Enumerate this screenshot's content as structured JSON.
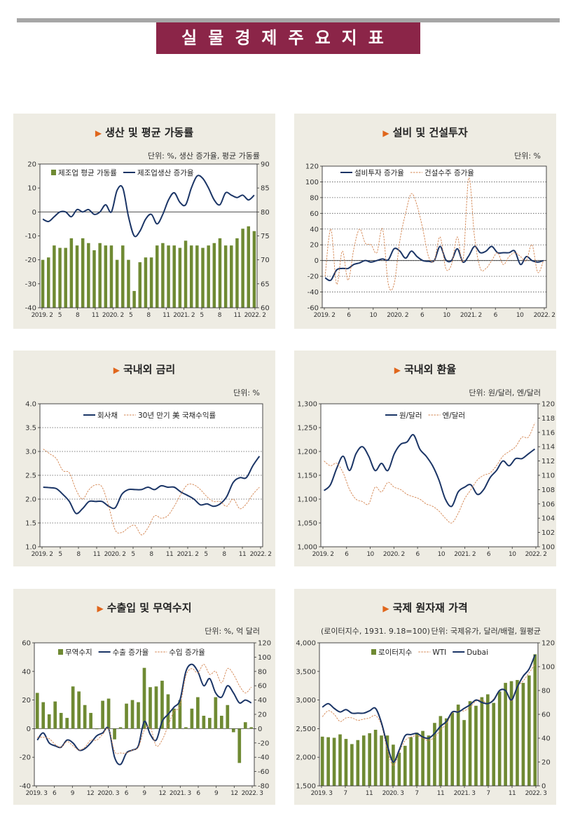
{
  "page_title": "실물경제주요지표",
  "colors": {
    "bar": "#6f8a33",
    "navy": "#1b3566",
    "orange": "#d3834e",
    "banner": "#8b2548"
  },
  "panels": [
    {
      "title": "생산 및 평균 가동률",
      "unit": "단위: %, 생산 증가율, 평균 가동률"
    },
    {
      "title": "설비 및 건설투자",
      "unit": "단위: %"
    },
    {
      "title": "국내외 금리",
      "unit": "단위: %"
    },
    {
      "title": "국내외 환율",
      "unit": "단위: 원/달러, 엔/달러"
    },
    {
      "title": "수출입 및 무역수지",
      "unit": "단위: %, 억 달러"
    },
    {
      "title": "국제 원자재 가격",
      "unit": "단위: 국제유가, 달러/배럴, 월평균",
      "unit_left": "(로이터지수, 1931. 9.18=100)"
    }
  ],
  "chart_data": [
    {
      "type": "bar",
      "title": "생산 및 평균 가동률",
      "x_ticks": [
        "2019. 2",
        "5",
        "8",
        "11",
        "2020. 2",
        "5",
        "8",
        "11",
        "2021. 2",
        "5",
        "8",
        "11",
        "2022. 2"
      ],
      "left_axis": {
        "ylim": [
          -40,
          20
        ],
        "ticks": [
          20,
          10,
          0,
          -10,
          -20,
          -30,
          -40
        ]
      },
      "right_axis": {
        "ylim": [
          60,
          90
        ],
        "ticks": [
          90,
          85,
          80,
          75,
          70,
          65,
          60
        ]
      },
      "series": [
        {
          "name": "제조업 평균 가동률",
          "kind": "bar",
          "axis": "right",
          "values": [
            70.0,
            70.5,
            73.0,
            72.5,
            72.5,
            74.5,
            73.0,
            74.5,
            73.5,
            72.0,
            73.5,
            73.0,
            73.0,
            70.0,
            73.0,
            70.0,
            63.5,
            69.5,
            70.5,
            70.5,
            73.0,
            73.5,
            73.0,
            73.0,
            72.5,
            74.0,
            73.0,
            73.0,
            72.5,
            73.0,
            73.5,
            74.5,
            73.0,
            73.0,
            74.5,
            76.5,
            77.0,
            76.0
          ]
        },
        {
          "name": "제조업생산 증가율",
          "kind": "line",
          "axis": "left",
          "values": [
            -3,
            -4,
            -2,
            0,
            0,
            -2,
            1,
            0,
            1,
            -1,
            0,
            3,
            0,
            9,
            10,
            -2,
            -10,
            -8,
            -3,
            -1,
            -5,
            -1,
            5,
            8,
            4,
            3,
            10,
            15,
            14,
            10,
            5,
            3,
            8,
            7,
            6,
            7,
            5,
            7
          ]
        }
      ]
    },
    {
      "type": "line",
      "title": "설비 및 건설투자",
      "x_ticks": [
        "2019. 2",
        "6",
        "10",
        "2020. 2",
        "6",
        "10",
        "2021. 2",
        "6",
        "10",
        "2022. 2"
      ],
      "ylim": [
        -60,
        120
      ],
      "y_ticks": [
        120,
        100,
        80,
        60,
        40,
        20,
        0,
        -20,
        -40,
        -60
      ],
      "series": [
        {
          "name": "설비투자 증가율",
          "values": [
            -22,
            -25,
            -12,
            -10,
            -10,
            -5,
            -3,
            0,
            -2,
            0,
            2,
            1,
            15,
            12,
            3,
            12,
            5,
            0,
            -1,
            0,
            18,
            1,
            0,
            15,
            -2,
            6,
            18,
            10,
            12,
            18,
            10,
            10,
            10,
            12,
            -5,
            5,
            0,
            -2,
            0
          ]
        },
        {
          "name": "건설수주 증가율",
          "values": [
            -20,
            40,
            -30,
            12,
            -25,
            15,
            40,
            22,
            20,
            10,
            40,
            -30,
            -30,
            25,
            60,
            85,
            70,
            40,
            5,
            0,
            30,
            -10,
            -5,
            30,
            0,
            105,
            30,
            -10,
            -10,
            0,
            10,
            -5,
            5,
            10,
            5,
            0,
            20,
            -15,
            0
          ]
        }
      ]
    },
    {
      "type": "line",
      "title": "국내외 금리",
      "x_ticks": [
        "2019. 2",
        "5",
        "8",
        "11",
        "2020. 2",
        "5",
        "8",
        "11",
        "2021. 2",
        "5",
        "8",
        "11",
        "2022. 2"
      ],
      "ylim": [
        1.0,
        4.0
      ],
      "y_ticks": [
        "4.0",
        "3.5",
        "3.0",
        "2.5",
        "2.0",
        "1.5",
        "1.0"
      ],
      "series": [
        {
          "name": "회사채",
          "values": [
            2.25,
            2.24,
            2.22,
            2.1,
            1.95,
            1.7,
            1.8,
            1.95,
            1.95,
            1.95,
            1.85,
            1.82,
            2.1,
            2.2,
            2.2,
            2.2,
            2.25,
            2.2,
            2.28,
            2.25,
            2.25,
            2.15,
            2.08,
            2.0,
            1.88,
            1.9,
            1.85,
            1.9,
            2.05,
            2.35,
            2.45,
            2.45,
            2.7,
            2.9
          ]
        },
        {
          "name": "30년 만기 美 국채수익률",
          "values": [
            3.05,
            2.95,
            2.85,
            2.6,
            2.55,
            2.2,
            2.0,
            2.2,
            2.3,
            2.25,
            1.85,
            1.35,
            1.3,
            1.4,
            1.45,
            1.25,
            1.4,
            1.65,
            1.6,
            1.65,
            1.85,
            2.1,
            2.3,
            2.3,
            2.2,
            2.05,
            1.95,
            1.95,
            1.85,
            2.0,
            1.8,
            1.9,
            2.1,
            2.25
          ]
        }
      ]
    },
    {
      "type": "line",
      "title": "국내외 환율",
      "x_ticks": [
        "2019. 2",
        "6",
        "10",
        "2020. 2",
        "6",
        "10",
        "2021. 2",
        "6",
        "10",
        "2022. 2"
      ],
      "left_axis": {
        "ylim": [
          1000,
          1300
        ],
        "ticks": [
          "1,300",
          "1,250",
          "1,200",
          "1,150",
          "1,100",
          "1,050",
          "1,000"
        ]
      },
      "right_axis": {
        "ylim": [
          100,
          120
        ],
        "ticks": [
          120,
          118,
          116,
          114,
          112,
          110,
          108,
          106,
          104,
          102,
          100
        ]
      },
      "series": [
        {
          "name": "원/달러",
          "axis": "left",
          "values": [
            1118,
            1130,
            1165,
            1190,
            1160,
            1195,
            1210,
            1190,
            1160,
            1175,
            1160,
            1195,
            1215,
            1220,
            1235,
            1205,
            1190,
            1170,
            1140,
            1100,
            1085,
            1115,
            1125,
            1130,
            1110,
            1120,
            1145,
            1160,
            1180,
            1170,
            1185,
            1185,
            1195,
            1205
          ]
        },
        {
          "name": "엔/달러",
          "axis": "left",
          "values": [
            1180,
            1170,
            1175,
            1155,
            1120,
            1100,
            1095,
            1090,
            1125,
            1115,
            1135,
            1125,
            1120,
            1110,
            1105,
            1100,
            1090,
            1085,
            1075,
            1060,
            1050,
            1070,
            1100,
            1120,
            1140,
            1150,
            1155,
            1170,
            1190,
            1200,
            1210,
            1230,
            1230,
            1260
          ]
        }
      ]
    },
    {
      "type": "bar",
      "title": "수출입 및 무역수지",
      "x_ticks": [
        "2019. 3",
        "6",
        "9",
        "12",
        "2020. 3",
        "6",
        "9",
        "12",
        "2021. 3",
        "6",
        "9",
        "12",
        "2022. 3"
      ],
      "left_axis": {
        "ylim": [
          -40,
          60
        ],
        "ticks": [
          60,
          40,
          20,
          0,
          -20,
          -40
        ]
      },
      "right_axis": {
        "ylim": [
          -80,
          120
        ],
        "ticks": [
          120,
          100,
          80,
          60,
          40,
          20,
          0,
          -20,
          -40,
          -60,
          -80
        ]
      },
      "series": [
        {
          "name": "무역수지",
          "kind": "bar",
          "axis": "right",
          "values": [
            50,
            37,
            20,
            38,
            22,
            15,
            59,
            52,
            33,
            22,
            0,
            39,
            42,
            -15,
            2,
            35,
            40,
            37,
            85,
            58,
            59,
            67,
            48,
            28,
            40,
            2,
            28,
            44,
            18,
            15,
            44,
            18,
            33,
            -5,
            -48,
            9,
            2
          ]
        },
        {
          "name": "수출 증가율",
          "kind": "line",
          "axis": "left",
          "values": [
            -8,
            -3,
            -10,
            -12,
            -13,
            -8,
            -10,
            -15,
            -14,
            -10,
            -5,
            -3,
            0,
            -20,
            -25,
            -17,
            -15,
            -12,
            5,
            -4,
            -8,
            5,
            10,
            15,
            20,
            40,
            45,
            40,
            30,
            35,
            25,
            22,
            30,
            25,
            18,
            20,
            18
          ]
        },
        {
          "name": "수입 증가율",
          "kind": "line",
          "axis": "left",
          "values": [
            -6,
            -6,
            -7,
            -11,
            -13,
            -9,
            -12,
            -15,
            -13,
            -8,
            -8,
            -4,
            0,
            -16,
            -17,
            -17,
            -15,
            -13,
            -1,
            1,
            -12,
            -8,
            2,
            12,
            16,
            37,
            42,
            39,
            45,
            38,
            40,
            32,
            42,
            38,
            30,
            25,
            29
          ]
        }
      ]
    },
    {
      "type": "bar",
      "title": "국제 원자재 가격",
      "x_ticks": [
        "2019. 3",
        "7",
        "11",
        "2020. 3",
        "7",
        "11",
        "2021. 3",
        "7",
        "11",
        "2022. 3"
      ],
      "left_axis": {
        "ylim": [
          1500,
          4000
        ],
        "ticks": [
          "4,000",
          "3,500",
          "3,000",
          "2,500",
          "2,000",
          "1,500"
        ]
      },
      "right_axis": {
        "ylim": [
          0,
          120
        ],
        "ticks": [
          120,
          100,
          80,
          60,
          40,
          20,
          0
        ]
      },
      "series": [
        {
          "name": "로이터지수",
          "kind": "bar",
          "axis": "left",
          "values": [
            2360,
            2350,
            2340,
            2400,
            2320,
            2230,
            2300,
            2380,
            2420,
            2480,
            2380,
            2380,
            2220,
            2080,
            2200,
            2350,
            2430,
            2460,
            2380,
            2600,
            2720,
            2680,
            2780,
            2920,
            2650,
            2980,
            2900,
            3050,
            3100,
            2950,
            3150,
            3300,
            3330,
            3350,
            3300,
            3430,
            3800
          ]
        },
        {
          "name": "WTI",
          "kind": "line",
          "axis": "right",
          "values": [
            58,
            63,
            60,
            54,
            57,
            57,
            55,
            56,
            57,
            59,
            51,
            30,
            17,
            28,
            38,
            41,
            42,
            40,
            38,
            41,
            47,
            52,
            61,
            63,
            63,
            66,
            71,
            72,
            69,
            73,
            80,
            80,
            71,
            83,
            88,
            95,
            102
          ]
        },
        {
          "name": "Dubai",
          "kind": "line",
          "axis": "right",
          "values": [
            66,
            69,
            65,
            62,
            64,
            61,
            61,
            61,
            63,
            65,
            53,
            34,
            20,
            30,
            42,
            43,
            44,
            41,
            40,
            44,
            50,
            54,
            62,
            62,
            65,
            68,
            72,
            70,
            69,
            72,
            80,
            80,
            72,
            83,
            92,
            98,
            110
          ]
        }
      ]
    }
  ]
}
